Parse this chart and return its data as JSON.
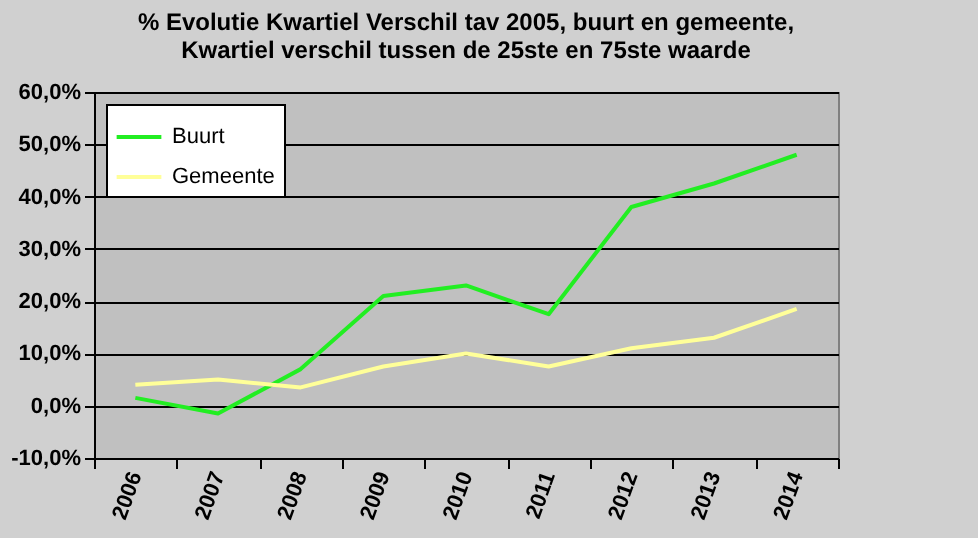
{
  "chart_data": {
    "type": "line",
    "title": "% Evolutie Kwartiel Verschil tav 2005, buurt en gemeente,\nKwartiel verschil tussen de 25ste en 75ste waarde",
    "categories": [
      "2006",
      "2007",
      "2008",
      "2009",
      "2010",
      "2011",
      "2012",
      "2013",
      "2014"
    ],
    "series": [
      {
        "name": "Buurt",
        "color": "#22ee22",
        "values": [
          1.5,
          -1.5,
          7,
          21,
          23,
          17.5,
          38,
          42.5,
          48
        ]
      },
      {
        "name": "Gemeente",
        "color": "#ffff99",
        "values": [
          4,
          5,
          3.5,
          7.5,
          10,
          7.5,
          11,
          13,
          18.5
        ]
      }
    ],
    "ylim": [
      -10,
      60
    ],
    "yticks": [
      {
        "value": -10,
        "label": "-10,0%"
      },
      {
        "value": 0,
        "label": "0,0%"
      },
      {
        "value": 10,
        "label": "10,0%"
      },
      {
        "value": 20,
        "label": "20,0%"
      },
      {
        "value": 30,
        "label": "30,0%"
      },
      {
        "value": 40,
        "label": "40,0%"
      },
      {
        "value": 50,
        "label": "50,0%"
      },
      {
        "value": 60,
        "label": "60,0%"
      }
    ],
    "grid": "y",
    "legend": "top left",
    "marker": "none",
    "line_style": "solid"
  }
}
